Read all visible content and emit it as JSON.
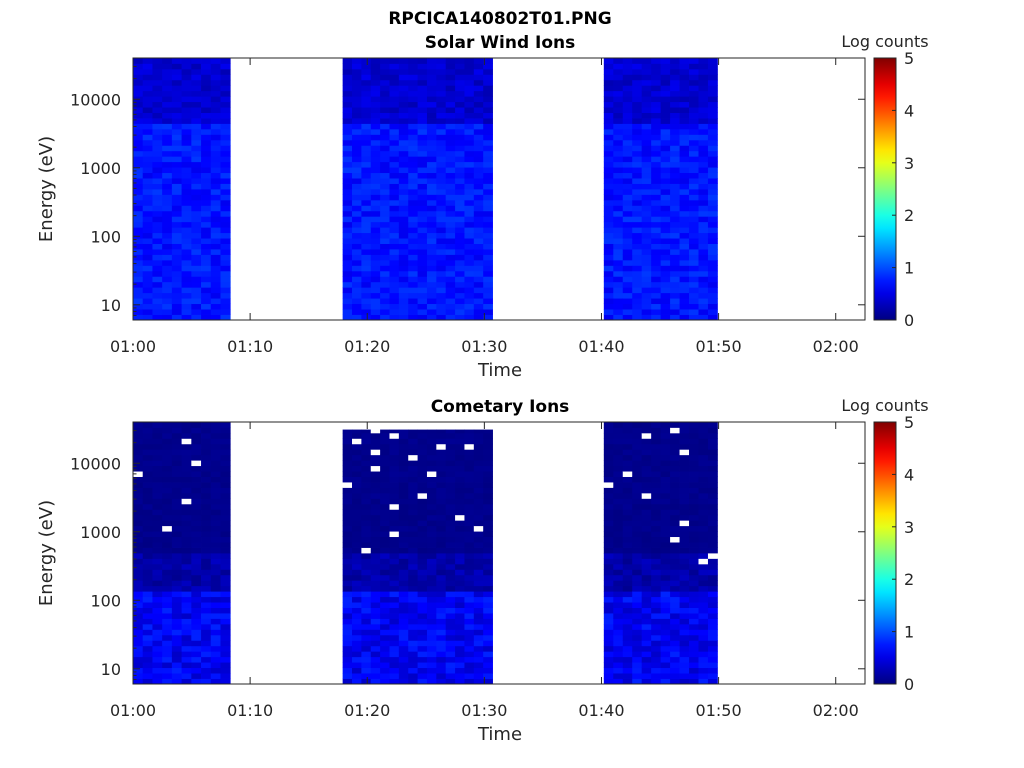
{
  "figure_title": "RPCICA140802T01.PNG",
  "chart_data": [
    {
      "type": "heatmap",
      "title": "Solar Wind Ions",
      "xlabel": "Time",
      "ylabel": "Energy (eV)",
      "x_ticks": [
        "01:00",
        "01:10",
        "01:20",
        "01:30",
        "01:40",
        "01:50",
        "02:00"
      ],
      "y_ticks": [
        "10",
        "100",
        "1000",
        "10000"
      ],
      "y_scale": "log",
      "ylim_eV": [
        6,
        40000
      ],
      "xlim_minutes": [
        0,
        62.5
      ],
      "data_segments_minutes": [
        [
          0,
          8.3
        ],
        [
          17.9,
          30.7
        ],
        [
          40.2,
          49.9
        ]
      ],
      "colorbar": {
        "label": "Log counts",
        "ticks": [
          "0",
          "1",
          "2",
          "3",
          "4",
          "5"
        ],
        "range": [
          0,
          5
        ],
        "colormap": "jet"
      },
      "typical_log_counts": {
        "low_energy": 0.7,
        "mid_energy": 0.7,
        "high_energy": 0.4
      }
    },
    {
      "type": "heatmap",
      "title": "Cometary Ions",
      "xlabel": "Time",
      "ylabel": "Energy (eV)",
      "x_ticks": [
        "01:00",
        "01:10",
        "01:20",
        "01:30",
        "01:40",
        "01:50",
        "02:00"
      ],
      "y_ticks": [
        "10",
        "100",
        "1000",
        "10000"
      ],
      "y_scale": "log",
      "ylim_eV": [
        6,
        40000
      ],
      "xlim_minutes": [
        0,
        62.5
      ],
      "data_segments_minutes": [
        [
          0,
          8.3
        ],
        [
          17.9,
          30.7
        ],
        [
          40.2,
          49.9
        ]
      ],
      "colorbar": {
        "label": "Log counts",
        "ticks": [
          "0",
          "1",
          "2",
          "3",
          "4",
          "5"
        ],
        "range": [
          0,
          5
        ],
        "colormap": "jet"
      },
      "typical_log_counts": {
        "low_energy": 0.6,
        "mid_energy": 0.1,
        "high_energy": 0.05
      }
    }
  ]
}
